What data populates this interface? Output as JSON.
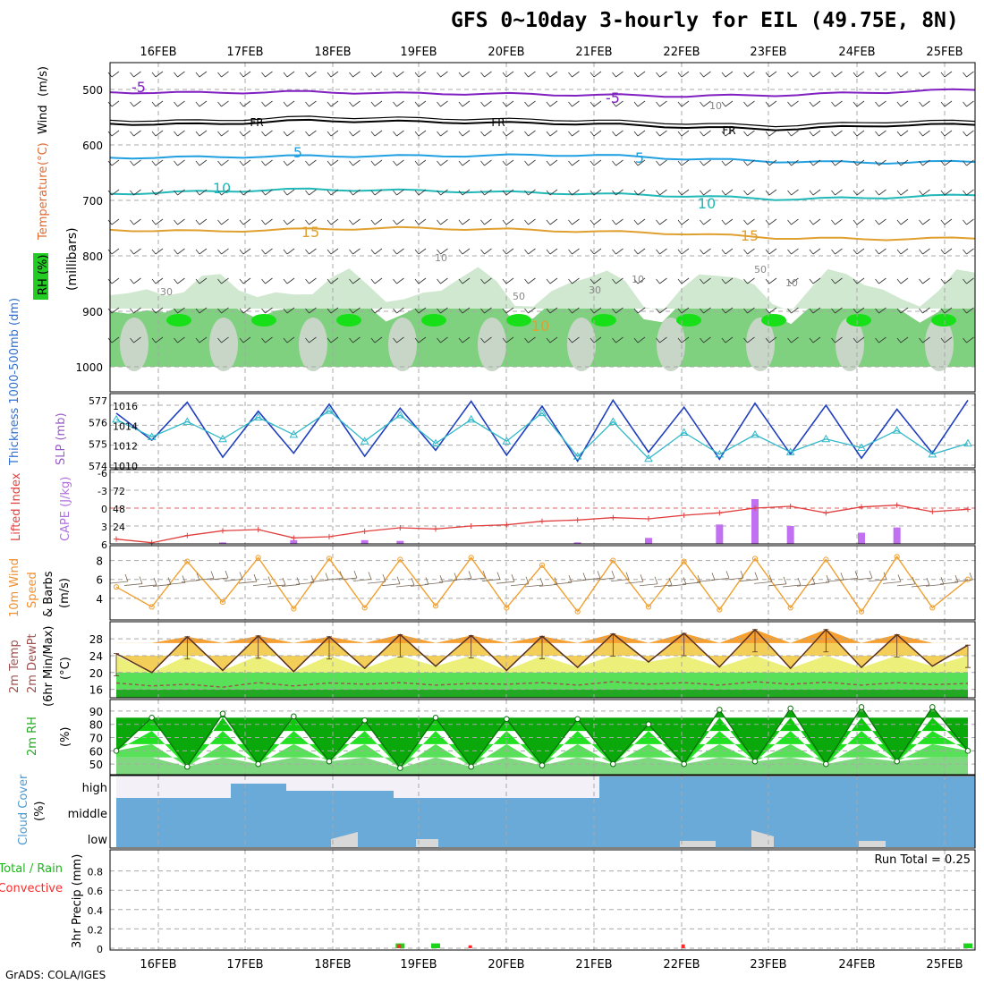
{
  "title": "GFS 0~10day 3-hourly for EIL (49.75E, 8N)",
  "footer": "GrADS: COLA/IGES",
  "colors": {
    "grid": "#a8a8a8",
    "slp": "#1f3fbf",
    "thickness": "#2fb8c8",
    "lifted": "#e04040",
    "cape": "#c070f0",
    "wind": "#f0a030",
    "tmax_fill": "#f5a030",
    "dew": "#a05050",
    "rh_fill": "#20c020",
    "cloud": "#6aaad8",
    "rain_total": "#19d419",
    "rain_conv": "#ff2a2a"
  },
  "chart_data": [
    {
      "type": "line",
      "panel": "pressure-cross-section",
      "x": [
        "16FEB",
        "17FEB",
        "18FEB",
        "19FEB",
        "20FEB",
        "21FEB",
        "22FEB",
        "23FEB",
        "24FEB",
        "25FEB"
      ],
      "ylabel_parts": [
        "RH (%)",
        "Temperature",
        "(°C)",
        "Wind",
        "(m/s)",
        "(millibars)"
      ],
      "yticks": [
        500,
        600,
        700,
        800,
        900,
        1000
      ],
      "ylim": [
        1000,
        450
      ],
      "series": [
        {
          "name": "-5",
          "level": [
            505,
            506,
            504,
            507,
            508,
            510,
            512,
            510,
            505,
            500
          ]
        },
        {
          "name": "FR",
          "level": [
            562,
            563,
            556,
            558,
            560,
            562,
            568,
            572,
            565,
            563
          ]
        },
        {
          "name": "5",
          "level": [
            623,
            622,
            620,
            620,
            619,
            618,
            625,
            630,
            632,
            630
          ]
        },
        {
          "name": "10",
          "level": [
            688,
            684,
            680,
            682,
            685,
            688,
            692,
            698,
            695,
            690
          ]
        },
        {
          "name": "15",
          "level": [
            753,
            756,
            752,
            750,
            752,
            756,
            760,
            768,
            770,
            768
          ]
        }
      ],
      "contour_labels": [
        "-5",
        "-5",
        "FR",
        "FR",
        "FR",
        "5",
        "5",
        "10",
        "10",
        "15",
        "15",
        "10",
        "30",
        "50",
        "30",
        "50",
        "10",
        "10",
        "10",
        "10"
      ]
    },
    {
      "type": "line",
      "panel": "slp-thickness",
      "left_axis": {
        "label": "Thickness 1000-500mb (dm)",
        "ticks": [
          574,
          575,
          576,
          577
        ]
      },
      "right_axis": {
        "label": "SLP (mb)",
        "ticks": [
          1010,
          1012,
          1014,
          1016
        ]
      },
      "series": [
        {
          "name": "SLP",
          "axis": "right",
          "values": [
            1015.2,
            1012.5,
            1016.3,
            1010.8,
            1015.4,
            1011.2,
            1016.1,
            1010.9,
            1015.7,
            1011.5,
            1016.4,
            1011.0,
            1015.9,
            1010.4,
            1016.5,
            1011.3,
            1015.8,
            1010.6,
            1016.2,
            1011.1,
            1016.0,
            1010.7,
            1015.6,
            1011.2,
            1016.5
          ]
        },
        {
          "name": "Thickness",
          "axis": "left",
          "values": [
            576.1,
            575.3,
            576.0,
            575.2,
            576.2,
            575.4,
            576.5,
            575.1,
            576.3,
            575.0,
            576.1,
            575.1,
            576.4,
            574.4,
            576.0,
            574.3,
            575.5,
            574.5,
            575.4,
            574.6,
            575.2,
            574.8,
            575.6,
            574.5,
            575.0
          ]
        }
      ]
    },
    {
      "type": "bar",
      "panel": "cape-lifted-index",
      "left_axis": {
        "label": "Lifted Index",
        "ticks": [
          "-6",
          "-3",
          "0",
          "3",
          "6"
        ]
      },
      "right_axis": {
        "label": "CAPE (J/kg)",
        "ticks": [
          24,
          48,
          72
        ]
      },
      "lifted_index": [
        5.2,
        5.8,
        4.6,
        3.8,
        3.6,
        5.0,
        4.8,
        3.9,
        3.3,
        3.5,
        3.0,
        2.8,
        2.2,
        2.0,
        1.6,
        1.8,
        1.2,
        0.8,
        0.0,
        -0.3,
        0.8,
        -0.2,
        -0.5,
        0.6,
        0.2
      ],
      "cape": [
        0,
        0,
        0,
        2,
        0,
        5,
        0,
        5,
        4,
        0,
        0,
        0,
        0,
        2,
        0,
        8,
        0,
        26,
        60,
        24,
        0,
        15,
        22,
        0,
        0
      ]
    },
    {
      "type": "line",
      "panel": "10m-wind",
      "ylabel": "10m Wind Speed & Barbs (m/s)",
      "yticks": [
        4,
        6,
        8
      ],
      "values": [
        5.2,
        3.1,
        7.9,
        3.6,
        8.3,
        2.9,
        8.2,
        3.0,
        8.1,
        3.2,
        8.3,
        3.0,
        7.5,
        2.6,
        8.0,
        3.1,
        7.9,
        2.8,
        8.2,
        3.0,
        8.1,
        2.6,
        8.4,
        3.0,
        6.0
      ]
    },
    {
      "type": "area",
      "panel": "2m-temperature",
      "ylabel": "2m Temp 2m DewPt (6hr Min/Max) (°C)",
      "yticks": [
        16,
        20,
        24,
        28
      ],
      "temp": [
        24.5,
        20.0,
        28.5,
        20.5,
        28.7,
        20.2,
        28.5,
        21.0,
        29.0,
        21.5,
        28.8,
        20.5,
        28.6,
        21.2,
        29.2,
        22.5,
        29.3,
        21.3,
        30.2,
        21.0,
        30.2,
        21.2,
        29.0,
        21.5,
        26.5
      ],
      "dewpoint": [
        17.5,
        16.8,
        17.2,
        16.5,
        17.6,
        16.8,
        17.5,
        17.2,
        17.6,
        17.0,
        17.4,
        17.2,
        17.6,
        17.0,
        17.8,
        17.2,
        17.6,
        17.0,
        17.8,
        17.2,
        17.7,
        17.0,
        17.6,
        17.1,
        17.4
      ]
    },
    {
      "type": "area",
      "panel": "2m-rh",
      "ylabel": "2m RH (%)",
      "yticks": [
        50,
        60,
        70,
        80,
        90
      ],
      "values": [
        60,
        85,
        48,
        88,
        50,
        86,
        52,
        83,
        47,
        85,
        48,
        84,
        49,
        84,
        50,
        80,
        50,
        91,
        52,
        92,
        50,
        93,
        52,
        93,
        60
      ]
    },
    {
      "type": "bar",
      "panel": "cloud-cover",
      "ylabel": "Cloud Cover (%)",
      "layers": [
        "high",
        "middle",
        "low"
      ]
    },
    {
      "type": "bar",
      "panel": "precip",
      "ylabel": "3hr Precip (mm)",
      "legend": [
        "Total / Rain",
        "Convective"
      ],
      "yticks": [
        0,
        0.2,
        0.4,
        0.6,
        0.8
      ],
      "annotation": "Run Total = 0.25",
      "total": [
        0,
        0,
        0,
        0,
        0,
        0,
        0,
        0,
        0.05,
        0.05,
        0,
        0,
        0,
        0,
        0,
        0,
        0,
        0,
        0,
        0,
        0,
        0,
        0,
        0,
        0.05
      ],
      "convective": [
        0,
        0,
        0,
        0,
        0,
        0,
        0,
        0,
        0.04,
        0,
        0.03,
        0,
        0,
        0,
        0,
        0,
        0.04,
        0,
        0,
        0,
        0,
        0,
        0,
        0,
        0
      ]
    }
  ]
}
